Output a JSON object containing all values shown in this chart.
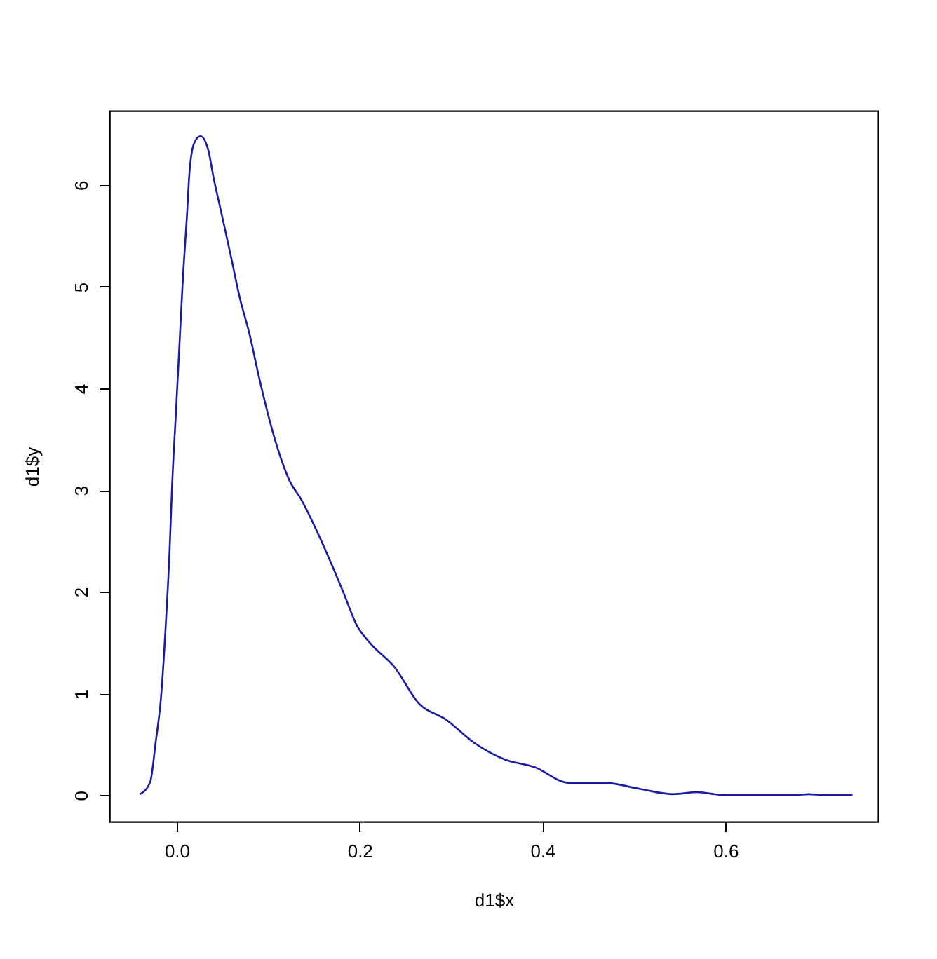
{
  "chart_data": {
    "type": "line",
    "xlabel": "d1$x",
    "ylabel": "d1$y",
    "xlim": [
      -0.0736,
      0.767
    ],
    "ylim": [
      -0.26,
      6.73
    ],
    "xticks": [
      {
        "value": 0,
        "label": "0.0"
      },
      0.2,
      0.4,
      0.6
    ],
    "yticks": [
      0,
      1,
      2,
      3,
      4,
      5,
      6
    ],
    "grid": false,
    "marker": "none",
    "line_style": "solid",
    "series": [
      {
        "color": "#1a1aa6",
        "x": [
          -0.04,
          -0.029,
          -0.023,
          -0.017,
          -0.012,
          -0.008,
          -0.005,
          -0.001,
          0.003,
          0.007,
          0.011,
          0.014,
          0.019,
          0.026,
          0.034,
          0.041,
          0.049,
          0.059,
          0.069,
          0.08,
          0.09,
          0.1,
          0.11,
          0.123,
          0.136,
          0.151,
          0.167,
          0.182,
          0.197,
          0.211,
          0.239,
          0.264,
          0.295,
          0.326,
          0.359,
          0.39,
          0.43,
          0.469,
          0.507,
          0.543,
          0.569,
          0.599,
          0.676,
          0.691,
          0.709,
          0.739
        ],
        "values": [
          0.01,
          0.13,
          0.52,
          0.98,
          1.67,
          2.36,
          3.05,
          3.74,
          4.43,
          5.12,
          5.67,
          6.13,
          6.41,
          6.48,
          6.36,
          6.04,
          5.72,
          5.31,
          4.89,
          4.52,
          4.11,
          3.74,
          3.42,
          3.1,
          2.91,
          2.64,
          2.32,
          2.0,
          1.67,
          1.5,
          1.25,
          0.91,
          0.74,
          0.51,
          0.35,
          0.28,
          0.12,
          0.12,
          0.06,
          0.01,
          0.03,
          0.0,
          0.0,
          0.01,
          0.0,
          0.0
        ]
      }
    ]
  }
}
